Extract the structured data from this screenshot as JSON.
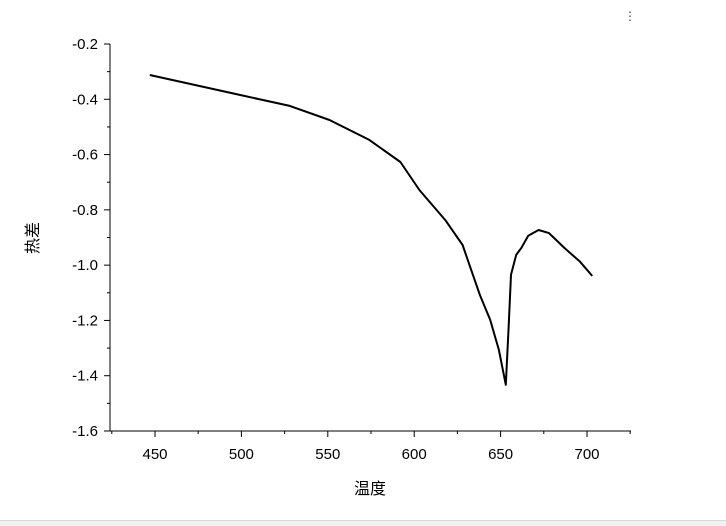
{
  "chart_data": {
    "type": "line",
    "title": "",
    "xlabel": "温度",
    "ylabel": "热差",
    "xlim": [
      424,
      725
    ],
    "ylim": [
      -1.6,
      -0.2
    ],
    "xticks": [
      450,
      500,
      550,
      600,
      650,
      700
    ],
    "yticks": [
      -0.2,
      -0.4,
      -0.6,
      -0.8,
      -1.0,
      -1.2,
      -1.4,
      -1.6
    ],
    "xtick_labels": [
      "450",
      "500",
      "550",
      "600",
      "650",
      "700"
    ],
    "ytick_labels": [
      "-0.2",
      "-0.4",
      "-0.6",
      "-0.8",
      "-1.0",
      "-1.2",
      "-1.4",
      "-1.6"
    ],
    "grid": false,
    "line_color": "#000000",
    "series": [
      {
        "x": [
          447,
          499,
          528,
          551,
          574,
          592,
          603,
          618,
          628,
          632,
          638,
          644,
          649,
          653,
          654.6,
          656,
          659,
          662,
          666,
          672,
          678,
          687,
          696,
          703
        ],
        "y": [
          -0.312,
          -0.384,
          -0.424,
          -0.475,
          -0.547,
          -0.627,
          -0.728,
          -0.837,
          -0.927,
          -1.0,
          -1.108,
          -1.198,
          -1.307,
          -1.433,
          -1.234,
          -1.035,
          -0.963,
          -0.938,
          -0.894,
          -0.873,
          -0.884,
          -0.938,
          -0.988,
          -1.039
        ]
      }
    ]
  }
}
